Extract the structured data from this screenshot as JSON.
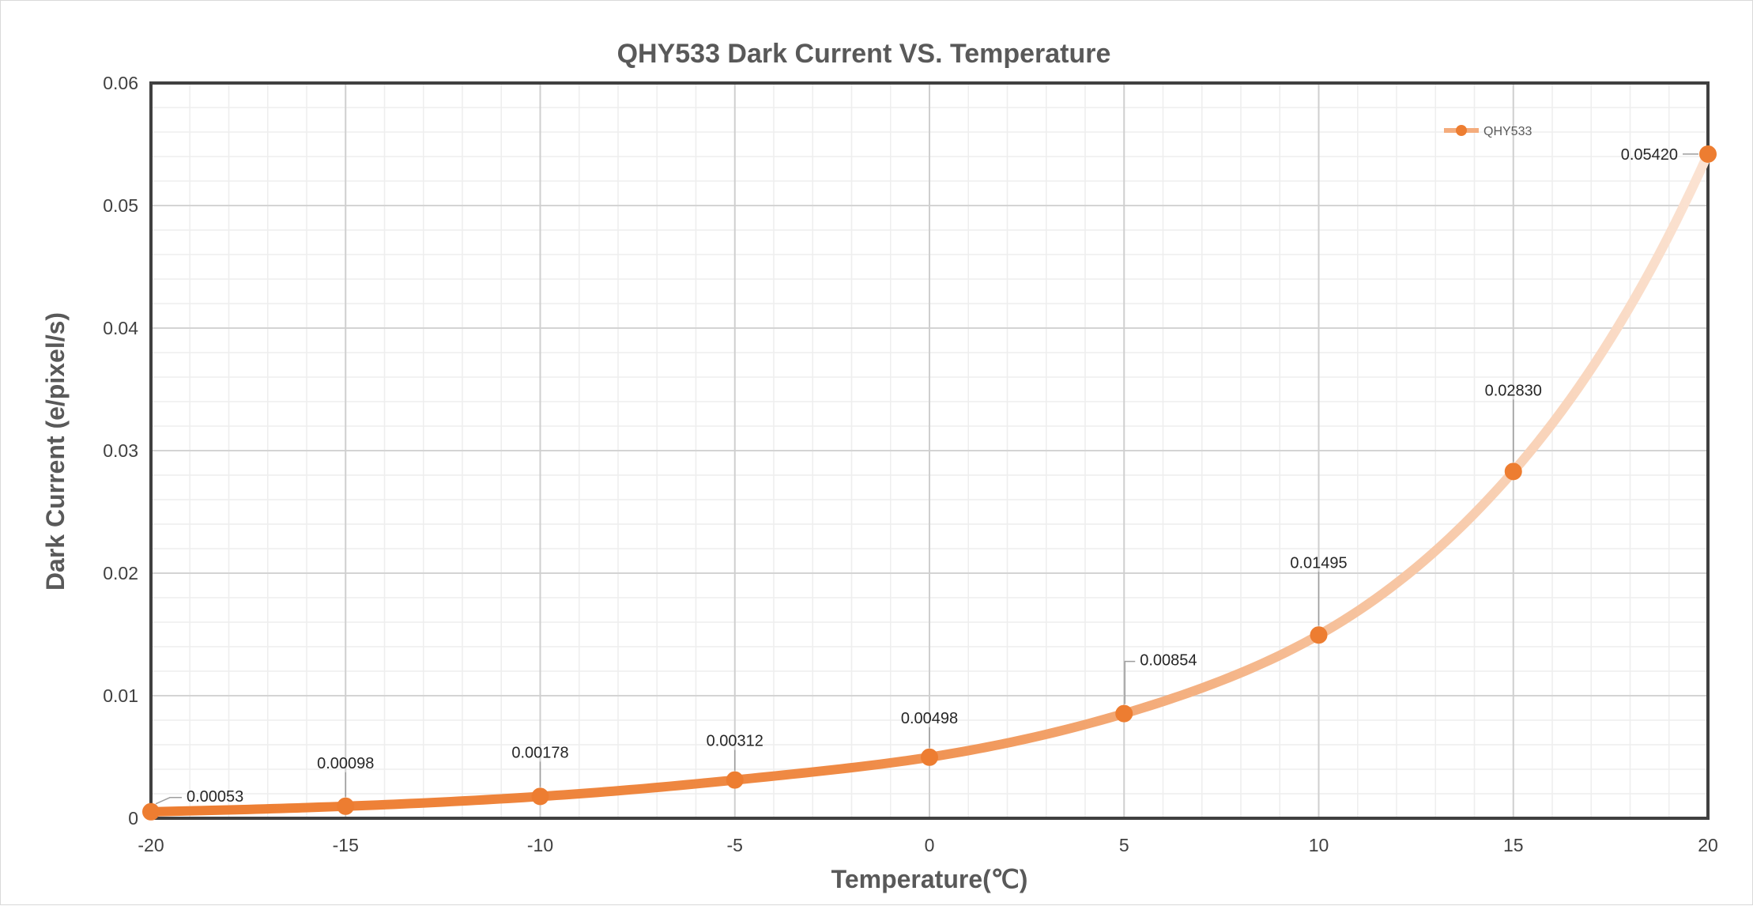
{
  "chart_data": {
    "type": "line",
    "title": "QHY533  Dark Current VS. Temperature",
    "xlabel": "Temperature(℃)",
    "ylabel": "Dark Current (e/pixel/s)",
    "xlim": [
      -20,
      20
    ],
    "ylim": [
      0,
      0.06
    ],
    "x_ticks": [
      "-20",
      "-15",
      "-10",
      "-5",
      "0",
      "5",
      "10",
      "15",
      "20"
    ],
    "y_ticks": [
      "0",
      "0.01",
      "0.02",
      "0.03",
      "0.04",
      "0.05",
      "0.06"
    ],
    "grid": true,
    "legend_position": "top-right",
    "series": [
      {
        "name": "QHY533",
        "color": "#ed7d31",
        "x": [
          -20,
          -15,
          -10,
          -5,
          0,
          5,
          10,
          15,
          20
        ],
        "values": [
          0.00053,
          0.00098,
          0.00178,
          0.00312,
          0.00498,
          0.00854,
          0.01495,
          0.0283,
          0.0542
        ],
        "data_labels": [
          "0.00053",
          "0.00098",
          "0.00178",
          "0.00312",
          "0.00498",
          "0.00854",
          "0.01495",
          "0.02830",
          "0.05420"
        ]
      }
    ]
  }
}
